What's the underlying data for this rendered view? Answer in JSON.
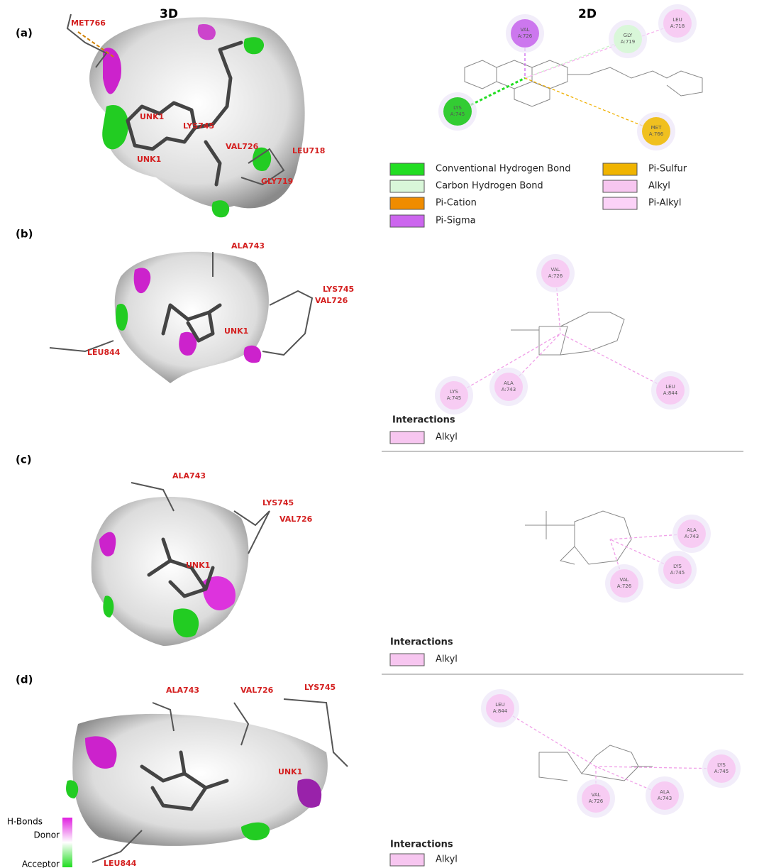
{
  "header": {
    "left": "3D",
    "right": "2D"
  },
  "panels": [
    {
      "label": "(a)",
      "residues_3d": [
        "MET766",
        "UNK1",
        "LYS745",
        "VAL726",
        "LEU718",
        "UNK1",
        "GLY719"
      ],
      "residues_2d": [
        {
          "name": "VAL",
          "chain": "A:726",
          "color": "#cc77ee"
        },
        {
          "name": "GLY",
          "chain": "A:719",
          "color": "#d9f7d9"
        },
        {
          "name": "LEU",
          "chain": "A:718",
          "color": "#f7ccf3"
        },
        {
          "name": "LYS",
          "chain": "A:745",
          "color": "#33cc33"
        },
        {
          "name": "MET",
          "chain": "A:766",
          "color": "#f0c020"
        }
      ],
      "legend": [
        {
          "label": "Conventional Hydrogen Bond",
          "color": "#22dd22"
        },
        {
          "label": "Carbon Hydrogen Bond",
          "color": "#d9f7d9"
        },
        {
          "label": "Pi-Cation",
          "color": "#f08c00"
        },
        {
          "label": "Pi-Sigma",
          "color": "#cc66ee"
        },
        {
          "label": "Pi-Sulfur",
          "color": "#f0b400"
        },
        {
          "label": "Alkyl",
          "color": "#f7c6f0"
        },
        {
          "label": "Pi-Alkyl",
          "color": "#fbd2f7"
        }
      ]
    },
    {
      "label": "(b)",
      "residues_3d": [
        "ALA743",
        "LYS745",
        "VAL726",
        "UNK1",
        "LEU844"
      ],
      "residues_2d": [
        {
          "name": "VAL",
          "chain": "A:726",
          "color": "#f7ccf3"
        },
        {
          "name": "LYS",
          "chain": "A:745",
          "color": "#f7ccf3"
        },
        {
          "name": "ALA",
          "chain": "A:743",
          "color": "#f7ccf3"
        },
        {
          "name": "LEU",
          "chain": "A:844",
          "color": "#f7ccf3"
        }
      ],
      "legend_title": "Interactions",
      "legend": [
        {
          "label": "Alkyl",
          "color": "#f7c6f0"
        }
      ]
    },
    {
      "label": "(c)",
      "residues_3d": [
        "ALA743",
        "LYS745",
        "VAL726",
        "UNK1"
      ],
      "residues_2d": [
        {
          "name": "ALA",
          "chain": "A:743",
          "color": "#f7ccf3"
        },
        {
          "name": "LYS",
          "chain": "A:745",
          "color": "#f7ccf3"
        },
        {
          "name": "VAL",
          "chain": "A:726",
          "color": "#f7ccf3"
        }
      ],
      "legend_title": "Interactions",
      "legend": [
        {
          "label": "Alkyl",
          "color": "#f7c6f0"
        }
      ]
    },
    {
      "label": "(d)",
      "residues_3d": [
        "ALA743",
        "VAL726",
        "LYS745",
        "UNK1",
        "LEU844"
      ],
      "residues_2d": [
        {
          "name": "LEU",
          "chain": "A:844",
          "color": "#f7ccf3"
        },
        {
          "name": "LYS",
          "chain": "A:745",
          "color": "#f7ccf3"
        },
        {
          "name": "VAL",
          "chain": "A:726",
          "color": "#f7ccf3"
        },
        {
          "name": "ALA",
          "chain": "A:743",
          "color": "#f7ccf3"
        }
      ],
      "legend_title": "Interactions",
      "legend": [
        {
          "label": "Alkyl",
          "color": "#f7c6f0"
        }
      ]
    }
  ],
  "colorbar": {
    "title": "H-Bonds",
    "top": "Donor",
    "bottom": "Acceptor"
  }
}
